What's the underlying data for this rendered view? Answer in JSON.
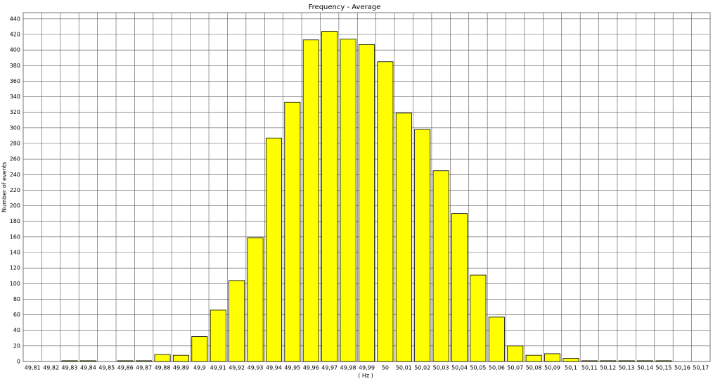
{
  "chart_data": {
    "type": "bar",
    "title": "Frequency  -  Average",
    "x_label": "( Hz )",
    "y_label": "Number of events",
    "categories": [
      "49,81",
      "49,82",
      "49,83",
      "49,84",
      "49,85",
      "49,86",
      "49,87",
      "49,88",
      "49,89",
      "49,9",
      "49,91",
      "49,92",
      "49,93",
      "49,94",
      "49,95",
      "49,96",
      "49,97",
      "49,98",
      "49,99",
      "50",
      "50,01",
      "50,02",
      "50,03",
      "50,04",
      "50,05",
      "50,06",
      "50,07",
      "50,08",
      "50,09",
      "50,1",
      "50,11",
      "50,12",
      "50,13",
      "50,14",
      "50,15",
      "50,16",
      "50,17"
    ],
    "values": [
      0,
      0,
      1,
      1,
      0,
      1,
      1,
      9,
      8,
      32,
      66,
      104,
      159,
      287,
      333,
      413,
      424,
      414,
      407,
      385,
      319,
      298,
      245,
      190,
      111,
      57,
      20,
      8,
      10,
      4,
      1,
      1,
      1,
      1,
      1,
      0,
      0
    ],
    "color": "#ffff00",
    "ylim": [
      0,
      448
    ],
    "yticks": [
      0,
      20,
      40,
      60,
      80,
      100,
      120,
      140,
      160,
      180,
      200,
      220,
      240,
      260,
      280,
      300,
      320,
      340,
      360,
      380,
      400,
      420,
      440
    ],
    "grid": true
  }
}
